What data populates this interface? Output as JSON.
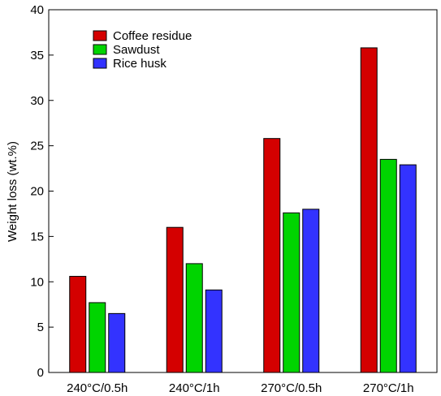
{
  "chart_data": {
    "type": "bar",
    "title": "",
    "xlabel": "",
    "ylabel": "Weight loss (wt.%)",
    "ylim": [
      0,
      40
    ],
    "yticks": [
      0,
      5,
      10,
      15,
      20,
      25,
      30,
      35,
      40
    ],
    "categories": [
      "240°C/0.5h",
      "240°C/1h",
      "270°C/0.5h",
      "270°C/1h"
    ],
    "series": [
      {
        "name": "Coffee residue",
        "color": "#d40000",
        "values": [
          10.6,
          16.0,
          25.8,
          35.8
        ]
      },
      {
        "name": "Sawdust",
        "color": "#00d400",
        "values": [
          7.7,
          12.0,
          17.6,
          23.5
        ]
      },
      {
        "name": "Rice husk",
        "color": "#3333ff",
        "values": [
          6.5,
          9.1,
          18.0,
          22.9
        ]
      }
    ],
    "legend_position": "top-left",
    "grid": false
  }
}
